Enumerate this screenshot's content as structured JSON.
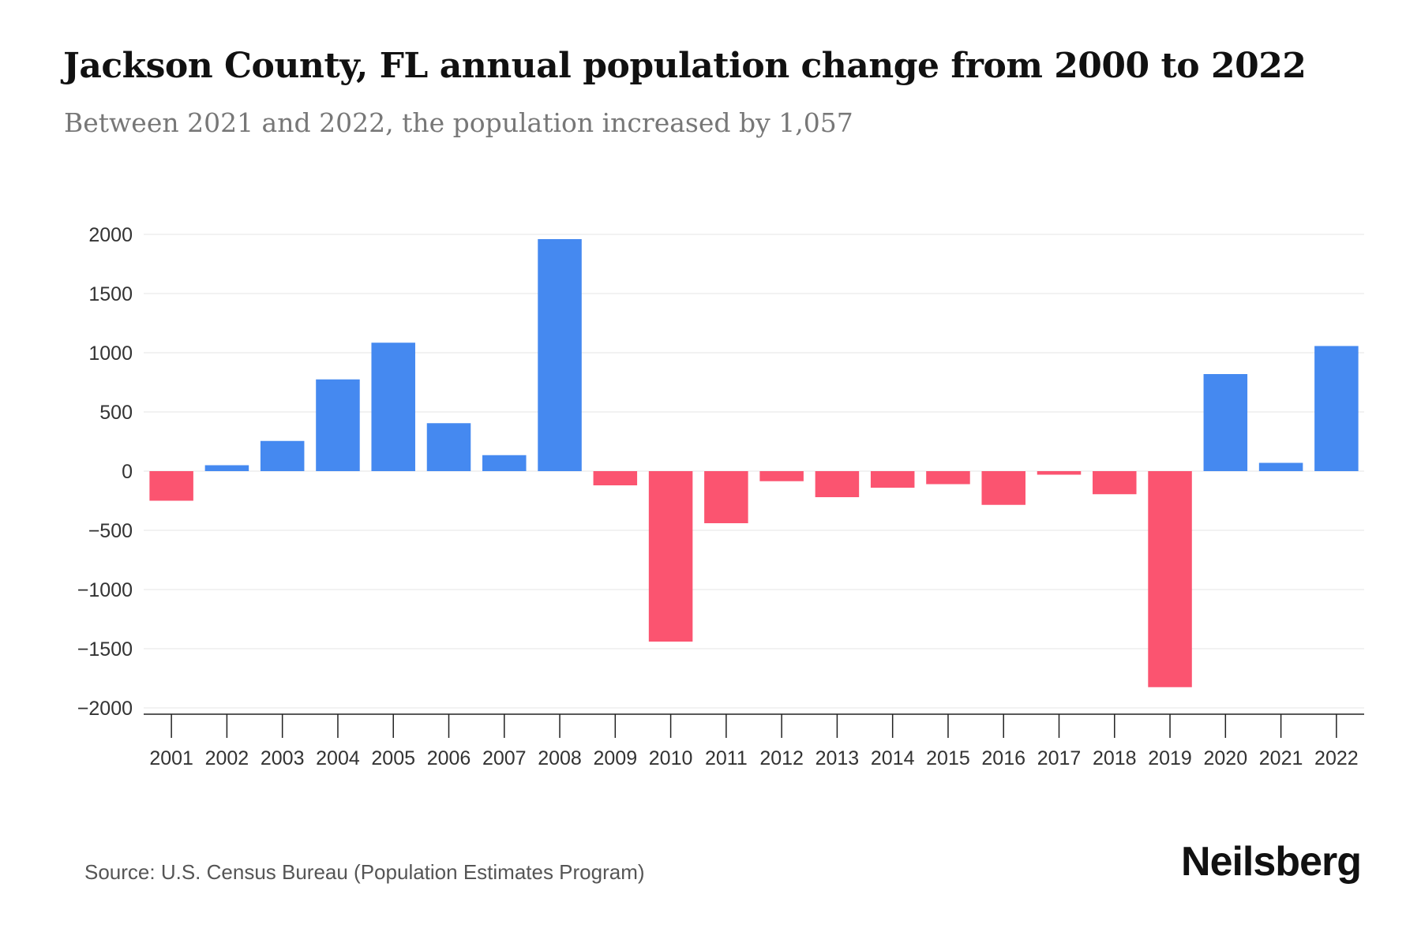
{
  "header": {
    "title": "Jackson County, FL annual population change from 2000 to 2022",
    "subtitle": "Between 2021 and 2022, the population increased by 1,057"
  },
  "footer": {
    "source": "Source: U.S. Census Bureau (Population Estimates Program)",
    "brand": "Neilsberg"
  },
  "colors": {
    "positive": "#4589f0",
    "negative": "#fb5470",
    "grid": "#eeeeee",
    "axis": "#222222",
    "tick_text": "#333333"
  },
  "chart_data": {
    "type": "bar",
    "title": "Jackson County, FL annual population change from 2000 to 2022",
    "subtitle": "Between 2021 and 2022, the population increased by 1,057",
    "xlabel": "",
    "ylabel": "",
    "ylim": [
      -2000,
      2000
    ],
    "yticks": [
      2000,
      1500,
      1000,
      500,
      0,
      -500,
      -1000,
      -1500,
      -2000
    ],
    "ytick_labels": [
      "2000",
      "1500",
      "1000",
      "500",
      "0",
      "−500",
      "−1000",
      "−1500",
      "−2000"
    ],
    "grid": true,
    "legend": "none",
    "categories": [
      "2001",
      "2002",
      "2003",
      "2004",
      "2005",
      "2006",
      "2007",
      "2008",
      "2009",
      "2010",
      "2011",
      "2012",
      "2013",
      "2014",
      "2015",
      "2016",
      "2017",
      "2018",
      "2019",
      "2020",
      "2021",
      "2022"
    ],
    "values": [
      -250,
      50,
      255,
      775,
      1085,
      405,
      135,
      1960,
      -120,
      -1440,
      -440,
      -85,
      -220,
      -140,
      -110,
      -285,
      -30,
      -195,
      -1825,
      820,
      70,
      1057
    ]
  }
}
